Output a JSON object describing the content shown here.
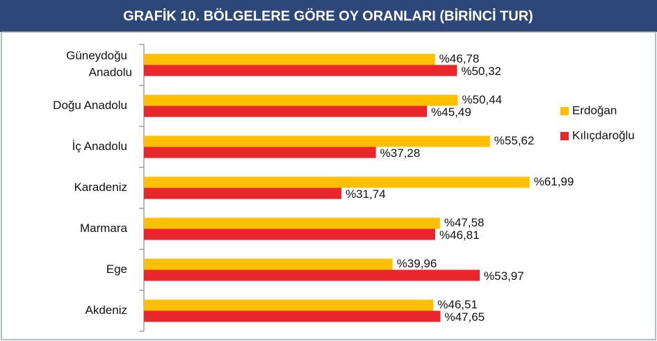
{
  "chart_data": {
    "type": "bar",
    "orientation": "horizontal",
    "title": "GRAFİK 10. BÖLGELERE GÖRE OY ORANLARI (BİRİNCİ TUR)",
    "categories": [
      "Güneydoğu Anadolu",
      "Doğu Anadolu",
      "İç Anadolu",
      "Karadeniz",
      "Marmara",
      "Ege",
      "Akdeniz"
    ],
    "series": [
      {
        "name": "Erdoğan",
        "color": "#ffc000",
        "values": [
          46.78,
          50.44,
          55.62,
          61.99,
          47.58,
          39.96,
          46.51
        ],
        "value_labels": [
          "%46,78",
          "%50,44",
          "%55,62",
          "%61,99",
          "%47,58",
          "%39,96",
          "%46,51"
        ]
      },
      {
        "name": "Kılıçdaroğlu",
        "color": "#e8262b",
        "values": [
          50.32,
          45.49,
          37.28,
          31.74,
          46.81,
          53.97,
          47.65
        ],
        "value_labels": [
          "%50,32",
          "%45,49",
          "%37,28",
          "%31,74",
          "%46,81",
          "%53,97",
          "%47,65"
        ]
      }
    ],
    "legend": "right"
  }
}
